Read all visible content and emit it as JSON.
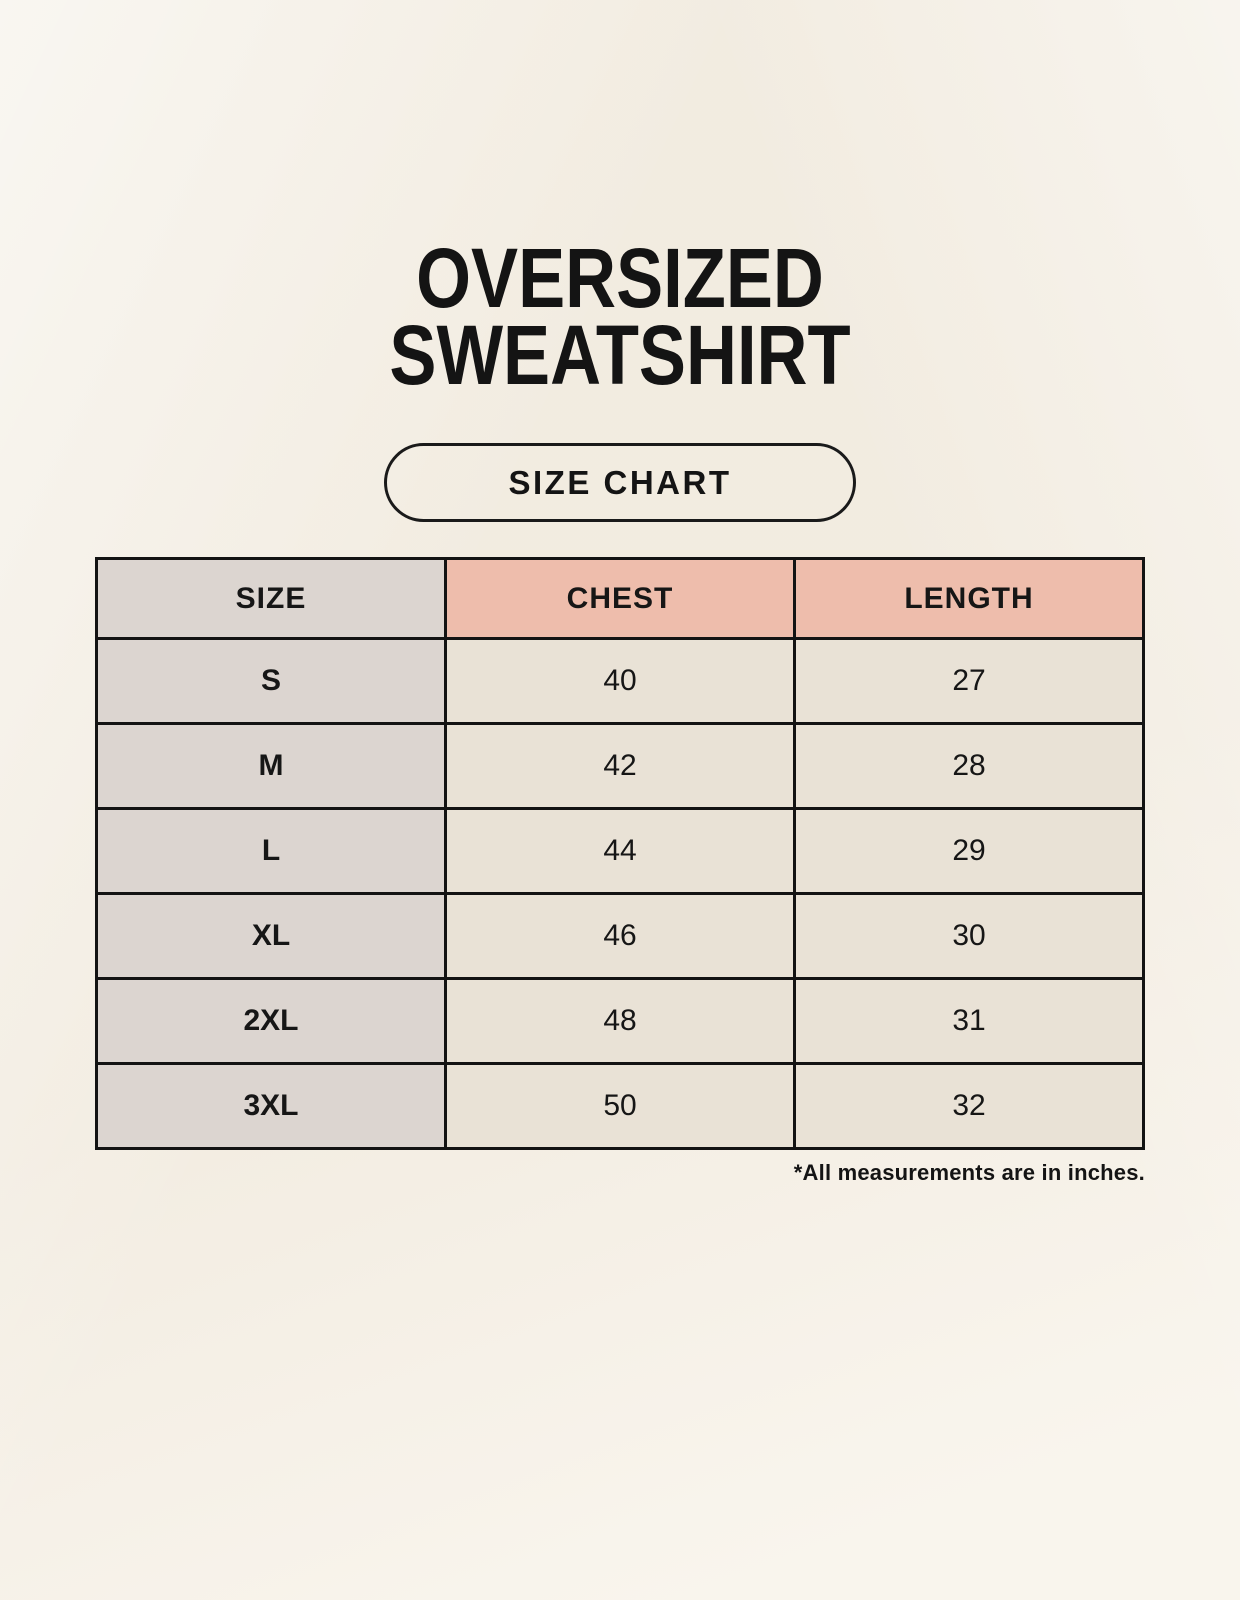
{
  "header": {
    "title_line1": "OVERSIZED",
    "title_line2": "SWEATSHIRT",
    "badge": "SIZE CHART"
  },
  "chart_data": {
    "type": "table",
    "title": "OVERSIZED SWEATSHIRT",
    "subtitle": "SIZE CHART",
    "columns": [
      "SIZE",
      "CHEST",
      "LENGTH"
    ],
    "rows": [
      [
        "S",
        40,
        27
      ],
      [
        "M",
        42,
        28
      ],
      [
        "L",
        44,
        29
      ],
      [
        "XL",
        46,
        30
      ],
      [
        "2XL",
        48,
        31
      ],
      [
        "3XL",
        50,
        32
      ]
    ],
    "note": "*All measurements are in inches.",
    "units": "inches"
  },
  "colors": {
    "page_background": "#f8f3ea",
    "size_column_bg": "#dcd5d0",
    "measure_header_bg": "#eebdac",
    "value_cell_bg": "#e9e2d6",
    "table_border": "#131313",
    "text": "#161616"
  }
}
